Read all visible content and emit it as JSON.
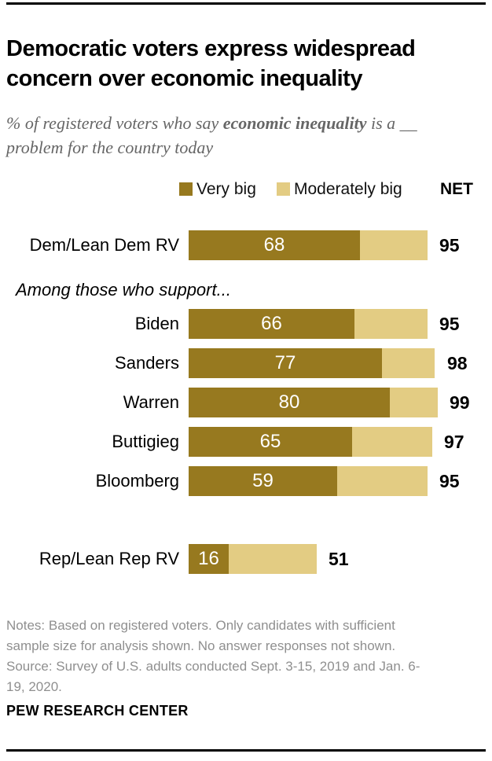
{
  "header": {
    "title": "Democratic voters express widespread\nconcern over economic inequality",
    "subtitle_prefix": "% of registered voters who say ",
    "subtitle_bold": "economic inequality",
    "subtitle_suffix": " is a __ problem for the country today"
  },
  "legend": {
    "very_big_label": "Very big",
    "moderately_big_label": "Moderately big",
    "net_label": "NET"
  },
  "colors": {
    "very_big": "#97791F",
    "moderately_big": "#E3CC83",
    "value_text": "#FFFFFF",
    "net_text": "#000000"
  },
  "chart_data": {
    "type": "bar",
    "orientation": "horizontal",
    "stacked": true,
    "units": "% of registered voters",
    "title": "Democratic voters express widespread concern over economic inequality",
    "subtitle": "% of registered voters who say economic inequality is a __ problem for the country today",
    "series_labels": [
      "Very big",
      "Moderately big"
    ],
    "net_column_label": "NET",
    "section_label": "Among those who support...",
    "xlim": [
      0,
      100
    ],
    "rows": [
      {
        "category": "Dem/Lean Dem RV",
        "very_big": 68,
        "net": 95,
        "section": "overall"
      },
      {
        "category": "Biden",
        "very_big": 66,
        "net": 95,
        "section": "supporters"
      },
      {
        "category": "Sanders",
        "very_big": 77,
        "net": 98,
        "section": "supporters"
      },
      {
        "category": "Warren",
        "very_big": 80,
        "net": 99,
        "section": "supporters"
      },
      {
        "category": "Buttigieg",
        "very_big": 65,
        "net": 97,
        "section": "supporters"
      },
      {
        "category": "Bloomberg",
        "very_big": 59,
        "net": 95,
        "section": "supporters"
      },
      {
        "category": "Rep/Lean Rep RV",
        "very_big": 16,
        "net": 51,
        "section": "overall"
      }
    ]
  },
  "footer": {
    "notes": "Notes: Based on registered voters. Only candidates with sufficient sample size for analysis shown. No answer responses not shown.",
    "source": "Source: Survey of U.S. adults conducted Sept. 3-15, 2019 and Jan. 6-19, 2020.",
    "brand": "PEW RESEARCH CENTER"
  }
}
